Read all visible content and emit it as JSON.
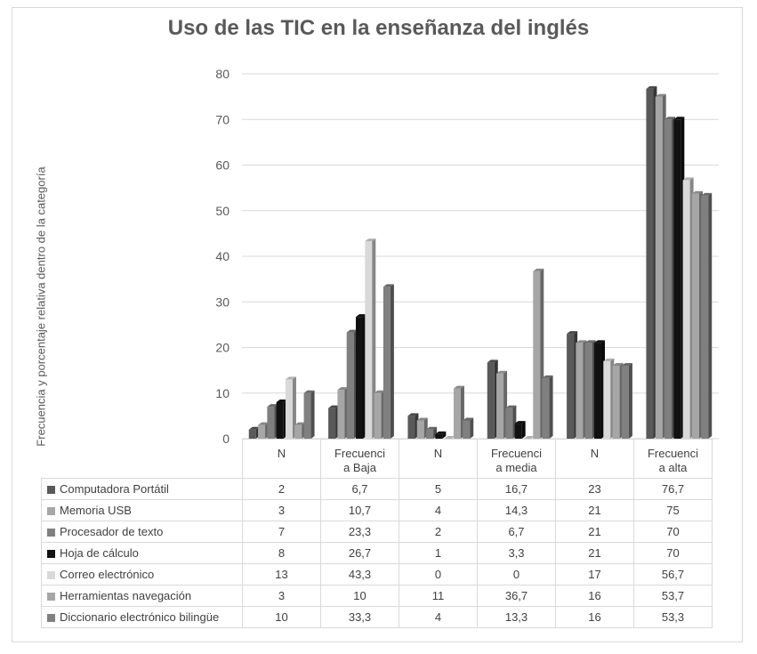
{
  "chart_data": {
    "type": "bar",
    "title": "Uso de las TIC en la enseñanza del inglés",
    "ylabel": "Frecuencia y porcentaje relativa dentro de la categoría",
    "ylim": [
      0,
      80
    ],
    "yticks": [
      0,
      10,
      20,
      30,
      40,
      50,
      60,
      70,
      80
    ],
    "categories": [
      {
        "l1": "N",
        "l2": ""
      },
      {
        "l1": "Frecuenci",
        "l2": "a Baja"
      },
      {
        "l1": "N",
        "l2": ""
      },
      {
        "l1": "Frecuenci",
        "l2": "a media"
      },
      {
        "l1": "N",
        "l2": ""
      },
      {
        "l1": "Frecuenci",
        "l2": "a alta"
      }
    ],
    "series": [
      {
        "name": "Computadora Portátil",
        "color": "#595959",
        "values": [
          2,
          6.7,
          5,
          16.7,
          23,
          76.7
        ],
        "labels": [
          "2",
          "6,7",
          "5",
          "16,7",
          "23",
          "76,7"
        ]
      },
      {
        "name": "Memoria USB",
        "color": "#a6a6a6",
        "values": [
          3,
          10.7,
          4,
          14.3,
          21,
          75
        ],
        "labels": [
          "3",
          "10,7",
          "4",
          "14,3",
          "21",
          "75"
        ]
      },
      {
        "name": "Procesador de texto",
        "color": "#7f7f7f",
        "values": [
          7,
          23.3,
          2,
          6.7,
          21,
          70
        ],
        "labels": [
          "7",
          "23,3",
          "2",
          "6,7",
          "21",
          "70"
        ]
      },
      {
        "name": "Hoja de cálculo",
        "color": "#111111",
        "values": [
          8,
          26.7,
          1,
          3.3,
          21,
          70
        ],
        "labels": [
          "8",
          "26,7",
          "1",
          "3,3",
          "21",
          "70"
        ]
      },
      {
        "name": "Correo electrónico",
        "color": "#d9d9d9",
        "values": [
          13,
          43.3,
          0,
          0,
          17,
          56.7
        ],
        "labels": [
          "13",
          "43,3",
          "0",
          "0",
          "17",
          "56,7"
        ]
      },
      {
        "name": "Herramientas navegación",
        "color": "#a6a6a6",
        "values": [
          3,
          10,
          11,
          36.7,
          16,
          53.7
        ],
        "labels": [
          "3",
          "10",
          "11",
          "36,7",
          "16",
          "53,7"
        ]
      },
      {
        "name": "Diccionario electrónico bilingüe",
        "color": "#808080",
        "values": [
          10,
          33.3,
          4,
          13.3,
          16,
          53.3
        ],
        "labels": [
          "10",
          "33,3",
          "4",
          "13,3",
          "16",
          "53,3"
        ]
      }
    ],
    "grid": true,
    "legend": "data-table"
  }
}
